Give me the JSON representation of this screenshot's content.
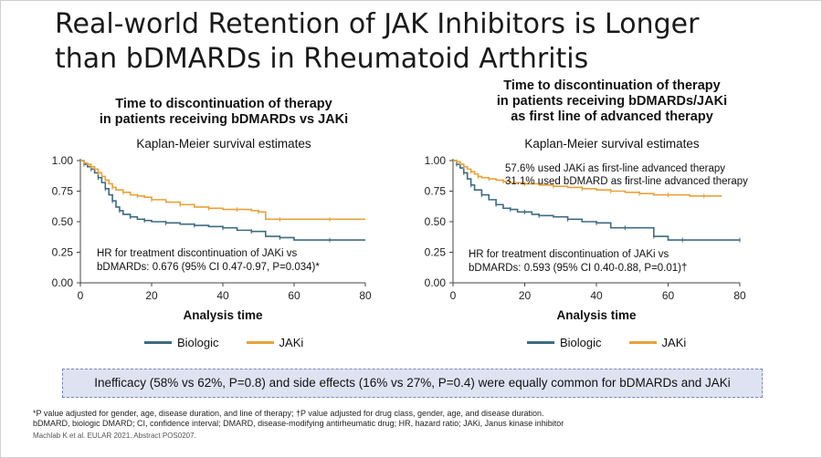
{
  "slide": {
    "title_line1": "Real-world Retention of JAK Inhibitors is Longer",
    "title_line2": "than bDMARDs in Rheumatoid Arthritis"
  },
  "left_panel": {
    "title_line1": "Time to discontinuation of therapy",
    "title_line2": "in patients receiving bDMARDs vs JAKi",
    "subtitle": "Kaplan-Meier survival estimates",
    "hr_line1": "HR for treatment discontinuation of JAKi vs",
    "hr_line2": "bDMARDs: 0.676 (95% CI 0.47-0.97, P=0.034)*",
    "xlabel": "Analysis time",
    "legend": [
      "Biologic",
      "JAKi"
    ]
  },
  "right_panel": {
    "title_line1": "Time to discontinuation of therapy",
    "title_line2": "in patients receiving bDMARDs/JAKi",
    "title_line3": "as first line of advanced therapy",
    "subtitle": "Kaplan-Meier survival estimates",
    "note1": "57.6% used JAKi as first-line advanced therapy",
    "note2": "31.1% used bDMARD as first-line advanced therapy",
    "hr_line1": "HR for treatment discontinuation of JAKi vs",
    "hr_line2": "bDMARDs: 0.593 (95% CI 0.40-0.88, P=0.01)†",
    "xlabel": "Analysis time",
    "legend": [
      "Biologic",
      "JAKi"
    ]
  },
  "callout": "Inefficacy (58% vs 62%, P=0.8) and side effects (16% vs 27%, P=0.4) were equally common for bDMARDs and JAKi",
  "footnotes": {
    "line1": "*P value adjusted for gender, age, disease duration, and line of therapy; †P value adjusted for drug class, gender, age, and disease duration.",
    "line2": "bDMARD, biologic DMARD; CI, confidence interval; DMARD, disease-modifying antirheumatic drug; HR, hazard ratio; JAKi, Janus kinase inhibitor",
    "line3": "Machlab K et al. EULAR 2021. Abstract POS0207."
  },
  "colors": {
    "biologic": "#3d6b82",
    "jaki": "#e8a23a"
  },
  "chart_data": [
    {
      "type": "line",
      "step": true,
      "title": "Time to discontinuation of therapy in patients receiving bDMARDs vs JAKi",
      "subtitle": "Kaplan-Meier survival estimates",
      "xlabel": "Analysis time",
      "ylabel": "",
      "xlim": [
        0,
        80
      ],
      "ylim": [
        0,
        1
      ],
      "xticks": [
        0,
        20,
        40,
        60,
        80
      ],
      "yticks": [
        "0.00",
        "0.25",
        "0.50",
        "0.75",
        "1.00"
      ],
      "series": [
        {
          "name": "Biologic",
          "x": [
            0,
            1,
            2,
            3,
            4,
            5,
            6,
            7,
            8,
            9,
            10,
            11,
            12,
            14,
            16,
            18,
            20,
            24,
            28,
            32,
            36,
            40,
            44,
            48,
            52,
            56,
            60,
            70,
            80
          ],
          "y": [
            1.0,
            0.97,
            0.95,
            0.93,
            0.9,
            0.86,
            0.82,
            0.77,
            0.72,
            0.67,
            0.62,
            0.59,
            0.56,
            0.54,
            0.52,
            0.51,
            0.5,
            0.49,
            0.48,
            0.47,
            0.46,
            0.45,
            0.43,
            0.42,
            0.38,
            0.37,
            0.35,
            0.35,
            0.35
          ]
        },
        {
          "name": "JAKi",
          "x": [
            0,
            1,
            2,
            3,
            4,
            5,
            6,
            7,
            8,
            9,
            10,
            12,
            14,
            16,
            18,
            20,
            24,
            28,
            32,
            36,
            40,
            44,
            48,
            50,
            52,
            56,
            60,
            70,
            80
          ],
          "y": [
            1.0,
            0.98,
            0.97,
            0.95,
            0.93,
            0.9,
            0.87,
            0.84,
            0.81,
            0.78,
            0.76,
            0.74,
            0.72,
            0.71,
            0.7,
            0.68,
            0.66,
            0.64,
            0.62,
            0.61,
            0.6,
            0.6,
            0.59,
            0.58,
            0.52,
            0.52,
            0.52,
            0.52,
            0.52
          ]
        }
      ],
      "legend": "bottom"
    },
    {
      "type": "line",
      "step": true,
      "title": "Time to discontinuation of therapy in patients receiving bDMARDs/JAKi as first line of advanced therapy",
      "subtitle": "Kaplan-Meier survival estimates",
      "xlabel": "Analysis time",
      "ylabel": "",
      "xlim": [
        0,
        80
      ],
      "ylim": [
        0,
        1
      ],
      "xticks": [
        0,
        20,
        40,
        60,
        80
      ],
      "yticks": [
        "0.00",
        "0.25",
        "0.50",
        "0.75",
        "1.00"
      ],
      "series": [
        {
          "name": "Biologic",
          "x": [
            0,
            1,
            2,
            3,
            4,
            5,
            6,
            8,
            10,
            12,
            14,
            16,
            18,
            20,
            22,
            24,
            28,
            32,
            36,
            40,
            44,
            48,
            52,
            56,
            60,
            64,
            70,
            80
          ],
          "y": [
            1.0,
            0.97,
            0.94,
            0.9,
            0.85,
            0.8,
            0.76,
            0.72,
            0.68,
            0.64,
            0.61,
            0.6,
            0.58,
            0.58,
            0.56,
            0.55,
            0.54,
            0.52,
            0.5,
            0.49,
            0.45,
            0.45,
            0.45,
            0.38,
            0.35,
            0.35,
            0.35,
            0.35
          ]
        },
        {
          "name": "JAKi",
          "x": [
            0,
            1,
            2,
            3,
            4,
            5,
            6,
            7,
            8,
            10,
            12,
            14,
            16,
            20,
            24,
            28,
            32,
            36,
            40,
            44,
            48,
            52,
            56,
            60,
            66,
            70,
            75
          ],
          "y": [
            1.0,
            0.99,
            0.97,
            0.95,
            0.93,
            0.91,
            0.89,
            0.87,
            0.86,
            0.85,
            0.84,
            0.83,
            0.82,
            0.81,
            0.8,
            0.79,
            0.78,
            0.77,
            0.76,
            0.75,
            0.74,
            0.73,
            0.72,
            0.72,
            0.71,
            0.71,
            0.71
          ]
        }
      ],
      "legend": "bottom"
    }
  ]
}
